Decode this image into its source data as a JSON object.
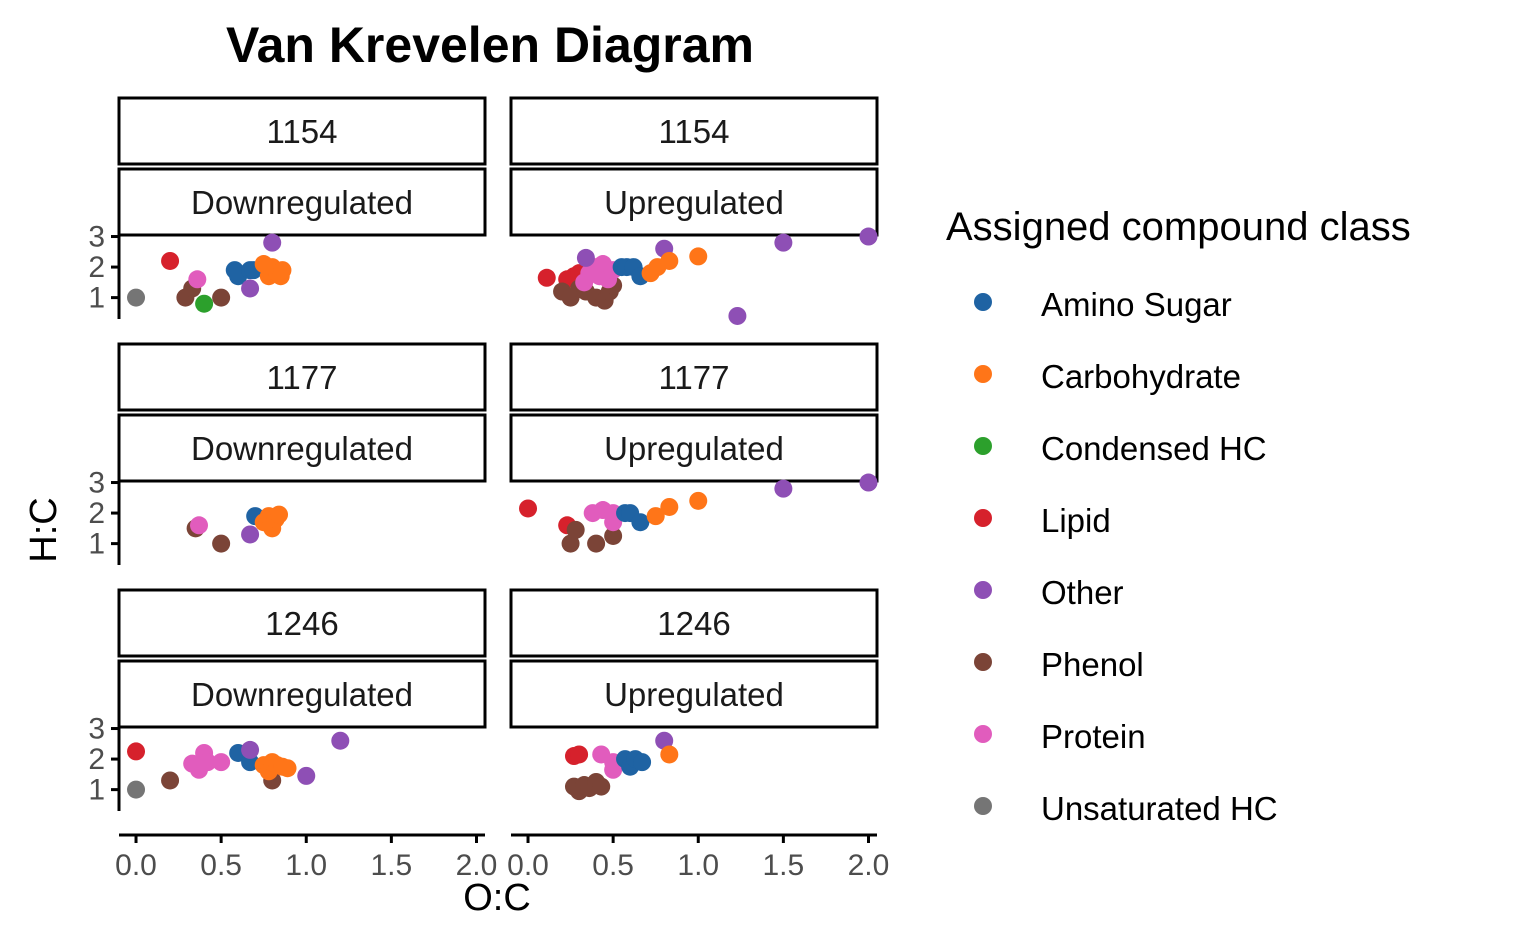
{
  "chart_data": {
    "type": "scatter",
    "title": "Van Krevelen Diagram",
    "xlabel": "O:C",
    "ylabel": "H:C",
    "xlim": [
      -0.1,
      2.05
    ],
    "x_ticks": [
      "0.0",
      "0.5",
      "1.0",
      "1.5",
      "2.0"
    ],
    "x_tick_values": [
      0,
      0.5,
      1.0,
      1.5,
      2.0
    ],
    "y_ticks": [
      "1",
      "2",
      "3"
    ],
    "y_tick_values": [
      1,
      2,
      3
    ],
    "grid": false,
    "legend": {
      "title": "Assigned compound class",
      "placement": "right",
      "entries": [
        {
          "name": "Amino Sugar",
          "color": "#1f63a3"
        },
        {
          "name": "Carbohydrate",
          "color": "#ff7518"
        },
        {
          "name": "Condensed HC",
          "color": "#2ca02c"
        },
        {
          "name": "Lipid",
          "color": "#d6212c"
        },
        {
          "name": "Other",
          "color": "#8e4fb5"
        },
        {
          "name": "Phenol",
          "color": "#7b4437"
        },
        {
          "name": "Protein",
          "color": "#e15cbd"
        },
        {
          "name": "Unsaturated HC",
          "color": "#757575"
        }
      ]
    },
    "panels": [
      {
        "strip_top": "1154",
        "strip_bottom": "Downregulated",
        "ylim": [
          0.3,
          3.05
        ],
        "points": [
          {
            "class": "Lipid",
            "x": 0.2,
            "y": 2.2
          },
          {
            "class": "Unsaturated HC",
            "x": 0.0,
            "y": 1.0
          },
          {
            "class": "Phenol",
            "x": 0.29,
            "y": 1.0
          },
          {
            "class": "Phenol",
            "x": 0.33,
            "y": 1.3
          },
          {
            "class": "Phenol",
            "x": 0.5,
            "y": 1.0
          },
          {
            "class": "Condensed HC",
            "x": 0.4,
            "y": 0.8
          },
          {
            "class": "Protein",
            "x": 0.36,
            "y": 1.6
          },
          {
            "class": "Amino Sugar",
            "x": 0.58,
            "y": 1.9
          },
          {
            "class": "Amino Sugar",
            "x": 0.6,
            "y": 1.7
          },
          {
            "class": "Amino Sugar",
            "x": 0.67,
            "y": 1.9
          },
          {
            "class": "Amino Sugar",
            "x": 0.69,
            "y": 1.9
          },
          {
            "class": "Other",
            "x": 0.67,
            "y": 1.3
          },
          {
            "class": "Other",
            "x": 0.8,
            "y": 2.8
          },
          {
            "class": "Carbohydrate",
            "x": 0.75,
            "y": 2.1
          },
          {
            "class": "Carbohydrate",
            "x": 0.78,
            "y": 1.7
          },
          {
            "class": "Carbohydrate",
            "x": 0.8,
            "y": 2.0
          },
          {
            "class": "Carbohydrate",
            "x": 0.83,
            "y": 1.8
          },
          {
            "class": "Carbohydrate",
            "x": 0.85,
            "y": 1.7
          },
          {
            "class": "Carbohydrate",
            "x": 0.86,
            "y": 1.9
          }
        ]
      },
      {
        "strip_top": "1154",
        "strip_bottom": "Upregulated",
        "ylim": [
          0.3,
          3.05
        ],
        "points": [
          {
            "class": "Lipid",
            "x": 0.11,
            "y": 1.65
          },
          {
            "class": "Lipid",
            "x": 0.23,
            "y": 1.6
          },
          {
            "class": "Lipid",
            "x": 0.27,
            "y": 1.7
          },
          {
            "class": "Lipid",
            "x": 0.3,
            "y": 1.8
          },
          {
            "class": "Phenol",
            "x": 0.2,
            "y": 1.2
          },
          {
            "class": "Phenol",
            "x": 0.25,
            "y": 1.0
          },
          {
            "class": "Phenol",
            "x": 0.3,
            "y": 1.3
          },
          {
            "class": "Phenol",
            "x": 0.34,
            "y": 1.2
          },
          {
            "class": "Phenol",
            "x": 0.4,
            "y": 1.0
          },
          {
            "class": "Phenol",
            "x": 0.45,
            "y": 0.9
          },
          {
            "class": "Phenol",
            "x": 0.48,
            "y": 1.2
          },
          {
            "class": "Phenol",
            "x": 0.5,
            "y": 1.4
          },
          {
            "class": "Protein",
            "x": 0.33,
            "y": 1.5
          },
          {
            "class": "Protein",
            "x": 0.36,
            "y": 1.8
          },
          {
            "class": "Protein",
            "x": 0.4,
            "y": 2.0
          },
          {
            "class": "Protein",
            "x": 0.42,
            "y": 1.7
          },
          {
            "class": "Protein",
            "x": 0.44,
            "y": 2.1
          },
          {
            "class": "Protein",
            "x": 0.47,
            "y": 1.6
          },
          {
            "class": "Protein",
            "x": 0.5,
            "y": 1.9
          },
          {
            "class": "Other",
            "x": 0.34,
            "y": 2.3
          },
          {
            "class": "Other",
            "x": 0.8,
            "y": 2.6
          },
          {
            "class": "Other",
            "x": 1.23,
            "y": 0.4
          },
          {
            "class": "Other",
            "x": 1.5,
            "y": 2.8
          },
          {
            "class": "Other",
            "x": 2.0,
            "y": 3.0
          },
          {
            "class": "Amino Sugar",
            "x": 0.55,
            "y": 2.0
          },
          {
            "class": "Amino Sugar",
            "x": 0.58,
            "y": 2.0
          },
          {
            "class": "Amino Sugar",
            "x": 0.62,
            "y": 2.0
          },
          {
            "class": "Amino Sugar",
            "x": 0.66,
            "y": 1.7
          },
          {
            "class": "Carbohydrate",
            "x": 0.72,
            "y": 1.8
          },
          {
            "class": "Carbohydrate",
            "x": 0.76,
            "y": 2.0
          },
          {
            "class": "Carbohydrate",
            "x": 0.83,
            "y": 2.2
          },
          {
            "class": "Carbohydrate",
            "x": 1.0,
            "y": 2.35
          }
        ]
      },
      {
        "strip_top": "1177",
        "strip_bottom": "Downregulated",
        "ylim": [
          0.3,
          3.05
        ],
        "points": [
          {
            "class": "Phenol",
            "x": 0.35,
            "y": 1.5
          },
          {
            "class": "Phenol",
            "x": 0.5,
            "y": 1.0
          },
          {
            "class": "Protein",
            "x": 0.37,
            "y": 1.6
          },
          {
            "class": "Other",
            "x": 0.67,
            "y": 1.3
          },
          {
            "class": "Amino Sugar",
            "x": 0.7,
            "y": 1.9
          },
          {
            "class": "Carbohydrate",
            "x": 0.75,
            "y": 1.7
          },
          {
            "class": "Carbohydrate",
            "x": 0.78,
            "y": 1.9
          },
          {
            "class": "Carbohydrate",
            "x": 0.8,
            "y": 1.5
          },
          {
            "class": "Carbohydrate",
            "x": 0.82,
            "y": 1.8
          },
          {
            "class": "Carbohydrate",
            "x": 0.84,
            "y": 1.95
          }
        ]
      },
      {
        "strip_top": "1177",
        "strip_bottom": "Upregulated",
        "ylim": [
          0.3,
          3.05
        ],
        "points": [
          {
            "class": "Lipid",
            "x": 0.0,
            "y": 2.15
          },
          {
            "class": "Lipid",
            "x": 0.23,
            "y": 1.6
          },
          {
            "class": "Phenol",
            "x": 0.25,
            "y": 1.0
          },
          {
            "class": "Phenol",
            "x": 0.28,
            "y": 1.45
          },
          {
            "class": "Phenol",
            "x": 0.4,
            "y": 1.0
          },
          {
            "class": "Phenol",
            "x": 0.5,
            "y": 1.25
          },
          {
            "class": "Protein",
            "x": 0.38,
            "y": 2.0
          },
          {
            "class": "Protein",
            "x": 0.44,
            "y": 2.1
          },
          {
            "class": "Protein",
            "x": 0.5,
            "y": 2.0
          },
          {
            "class": "Protein",
            "x": 0.5,
            "y": 1.7
          },
          {
            "class": "Amino Sugar",
            "x": 0.57,
            "y": 2.0
          },
          {
            "class": "Amino Sugar",
            "x": 0.6,
            "y": 2.0
          },
          {
            "class": "Amino Sugar",
            "x": 0.66,
            "y": 1.7
          },
          {
            "class": "Carbohydrate",
            "x": 0.75,
            "y": 1.9
          },
          {
            "class": "Carbohydrate",
            "x": 0.83,
            "y": 2.2
          },
          {
            "class": "Carbohydrate",
            "x": 1.0,
            "y": 2.4
          },
          {
            "class": "Other",
            "x": 1.5,
            "y": 2.8
          },
          {
            "class": "Other",
            "x": 2.0,
            "y": 3.0
          }
        ]
      },
      {
        "strip_top": "1246",
        "strip_bottom": "Downregulated",
        "ylim": [
          0.3,
          3.05
        ],
        "points": [
          {
            "class": "Lipid",
            "x": 0.0,
            "y": 2.25
          },
          {
            "class": "Unsaturated HC",
            "x": 0.0,
            "y": 1.0
          },
          {
            "class": "Phenol",
            "x": 0.2,
            "y": 1.3
          },
          {
            "class": "Phenol",
            "x": 0.8,
            "y": 1.3
          },
          {
            "class": "Protein",
            "x": 0.33,
            "y": 1.85
          },
          {
            "class": "Protein",
            "x": 0.37,
            "y": 1.65
          },
          {
            "class": "Protein",
            "x": 0.4,
            "y": 2.2
          },
          {
            "class": "Protein",
            "x": 0.42,
            "y": 1.9
          },
          {
            "class": "Protein",
            "x": 0.5,
            "y": 1.9
          },
          {
            "class": "Amino Sugar",
            "x": 0.6,
            "y": 2.2
          },
          {
            "class": "Amino Sugar",
            "x": 0.67,
            "y": 1.9
          },
          {
            "class": "Other",
            "x": 0.67,
            "y": 2.3
          },
          {
            "class": "Other",
            "x": 1.0,
            "y": 1.45
          },
          {
            "class": "Other",
            "x": 1.2,
            "y": 2.6
          },
          {
            "class": "Carbohydrate",
            "x": 0.75,
            "y": 1.8
          },
          {
            "class": "Carbohydrate",
            "x": 0.78,
            "y": 1.6
          },
          {
            "class": "Carbohydrate",
            "x": 0.8,
            "y": 1.9
          },
          {
            "class": "Carbohydrate",
            "x": 0.83,
            "y": 1.8
          },
          {
            "class": "Carbohydrate",
            "x": 0.86,
            "y": 1.75
          },
          {
            "class": "Carbohydrate",
            "x": 0.89,
            "y": 1.7
          }
        ]
      },
      {
        "strip_top": "1246",
        "strip_bottom": "Upregulated",
        "ylim": [
          0.3,
          3.05
        ],
        "points": [
          {
            "class": "Lipid",
            "x": 0.27,
            "y": 2.1
          },
          {
            "class": "Lipid",
            "x": 0.3,
            "y": 2.15
          },
          {
            "class": "Phenol",
            "x": 0.27,
            "y": 1.1
          },
          {
            "class": "Phenol",
            "x": 0.3,
            "y": 0.95
          },
          {
            "class": "Phenol",
            "x": 0.33,
            "y": 1.15
          },
          {
            "class": "Phenol",
            "x": 0.36,
            "y": 1.05
          },
          {
            "class": "Phenol",
            "x": 0.4,
            "y": 1.25
          },
          {
            "class": "Phenol",
            "x": 0.43,
            "y": 1.1
          },
          {
            "class": "Protein",
            "x": 0.43,
            "y": 2.15
          },
          {
            "class": "Protein",
            "x": 0.5,
            "y": 1.9
          },
          {
            "class": "Protein",
            "x": 0.5,
            "y": 1.65
          },
          {
            "class": "Amino Sugar",
            "x": 0.57,
            "y": 2.0
          },
          {
            "class": "Amino Sugar",
            "x": 0.6,
            "y": 1.75
          },
          {
            "class": "Amino Sugar",
            "x": 0.63,
            "y": 2.0
          },
          {
            "class": "Amino Sugar",
            "x": 0.67,
            "y": 1.9
          },
          {
            "class": "Other",
            "x": 0.8,
            "y": 2.6
          },
          {
            "class": "Carbohydrate",
            "x": 0.83,
            "y": 2.15
          }
        ]
      }
    ]
  }
}
